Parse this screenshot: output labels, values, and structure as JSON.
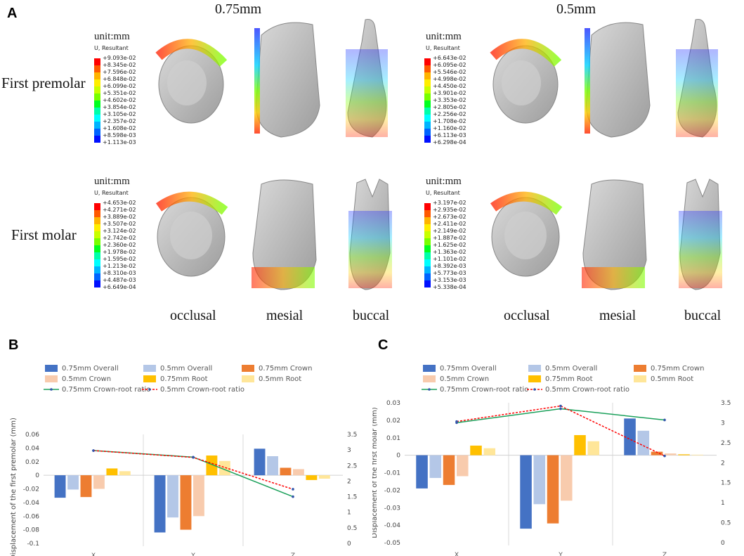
{
  "panel_a": {
    "letter": "A",
    "columns": [
      "0.75mm",
      "0.5mm"
    ],
    "rows": [
      "First premolar",
      "First molar"
    ],
    "views": [
      "occlusal",
      "mesial",
      "buccal"
    ],
    "unit_title": "unit:mm",
    "unit_sub": "U, Resultant",
    "scale_colors": [
      "#ff0000",
      "#ff5a00",
      "#ffb400",
      "#ffee00",
      "#c8ff00",
      "#78ff00",
      "#00ff20",
      "#00ffaa",
      "#00ffff",
      "#00b4ff",
      "#0064ff",
      "#0010ff"
    ],
    "scales": {
      "premolar_075": [
        "+9.093e-02",
        "+8.345e-02",
        "+7.596e-02",
        "+6.848e-02",
        "+6.099e-02",
        "+5.351e-02",
        "+4.602e-02",
        "+3.854e-02",
        "+3.105e-02",
        "+2.357e-02",
        "+1.608e-02",
        "+8.598e-03",
        "+1.113e-03"
      ],
      "premolar_05": [
        "+6.643e-02",
        "+6.095e-02",
        "+5.546e-02",
        "+4.998e-02",
        "+4.450e-02",
        "+3.901e-02",
        "+3.353e-02",
        "+2.805e-02",
        "+2.256e-02",
        "+1.708e-02",
        "+1.160e-02",
        "+6.113e-03",
        "+6.298e-04"
      ],
      "molar_075": [
        "+4.653e-02",
        "+4.271e-02",
        "+3.889e-02",
        "+3.507e-02",
        "+3.124e-02",
        "+2.742e-02",
        "+2.360e-02",
        "+1.978e-02",
        "+1.595e-02",
        "+1.213e-02",
        "+8.310e-03",
        "+4.487e-03",
        "+6.649e-04"
      ],
      "molar_05": [
        "+3.197e-02",
        "+2.935e-02",
        "+2.673e-02",
        "+2.411e-02",
        "+2.149e-02",
        "+1.887e-02",
        "+1.625e-02",
        "+1.363e-02",
        "+1.101e-02",
        "+8.392e-03",
        "+5.773e-03",
        "+3.153e-03",
        "+5.338e-04"
      ]
    }
  },
  "chart_data": [
    {
      "type": "bar",
      "panel": "B",
      "title": "",
      "categories": [
        "X",
        "Y",
        "Z"
      ],
      "ylabel": "Displacement of the first premolar (mm)",
      "ylim": [
        -0.1,
        0.06
      ],
      "yticks": [
        "0.06",
        "0.04",
        "0.02",
        "0",
        "-0.02",
        "-0.04",
        "-0.06",
        "-0.08",
        "-0.1"
      ],
      "y2lim": [
        0,
        3.5
      ],
      "y2ticks": [
        "3.5",
        "3",
        "2.5",
        "2",
        "1.5",
        "1",
        "0.5",
        "0"
      ],
      "series": [
        {
          "name": "0.75mm Overall",
          "color": "#4472c4",
          "values": [
            -0.033,
            -0.084,
            0.039
          ]
        },
        {
          "name": "0.5mm Overall",
          "color": "#b4c7e7",
          "values": [
            -0.021,
            -0.062,
            0.028
          ]
        },
        {
          "name": "0.75mm Crown",
          "color": "#ed7d31",
          "values": [
            -0.032,
            -0.08,
            0.011
          ]
        },
        {
          "name": "0.5mm Crown",
          "color": "#f8cbad",
          "values": [
            -0.02,
            -0.06,
            0.009
          ]
        },
        {
          "name": "0.75mm Root",
          "color": "#ffc000",
          "values": [
            0.01,
            0.029,
            -0.007
          ]
        },
        {
          "name": "0.5mm Root",
          "color": "#ffe699",
          "values": [
            0.006,
            0.021,
            -0.005
          ]
        }
      ],
      "ratio_series": [
        {
          "name": "0.75mm Crown-root ratio",
          "color": "#1aa05a",
          "values": [
            2.98,
            2.77,
            1.5
          ]
        },
        {
          "name": "0.5mm Crown-root ratio",
          "color": "#ff0000",
          "values": [
            2.98,
            2.76,
            1.74
          ]
        }
      ]
    },
    {
      "type": "bar",
      "panel": "C",
      "title": "",
      "categories": [
        "X",
        "Y",
        "Z"
      ],
      "ylabel": "Displacement of the  first molar (mm)",
      "ylim": [
        -0.05,
        0.03
      ],
      "yticks": [
        "0.03",
        "0.02",
        "0.01",
        "0",
        "-0.01",
        "-0.02",
        "-0.03",
        "-0.04",
        "-0.05"
      ],
      "y2lim": [
        0,
        3.5
      ],
      "y2ticks": [
        "3.5",
        "3",
        "2.5",
        "2",
        "1.5",
        "1",
        "0.5",
        "0"
      ],
      "series": [
        {
          "name": "0.75mm Overall",
          "color": "#4472c4",
          "values": [
            -0.019,
            -0.042,
            0.021
          ]
        },
        {
          "name": "0.5mm Overall",
          "color": "#b4c7e7",
          "values": [
            -0.013,
            -0.028,
            0.014
          ]
        },
        {
          "name": "0.75mm Crown",
          "color": "#ed7d31",
          "values": [
            -0.017,
            -0.039,
            0.002
          ]
        },
        {
          "name": "0.5mm Crown",
          "color": "#f8cbad",
          "values": [
            -0.012,
            -0.026,
            0.001
          ]
        },
        {
          "name": "0.75mm Root",
          "color": "#ffc000",
          "values": [
            0.0055,
            0.0115,
            0.0005
          ]
        },
        {
          "name": "0.5mm Root",
          "color": "#ffe699",
          "values": [
            0.004,
            0.008,
            0.0003
          ]
        }
      ],
      "ratio_series": [
        {
          "name": "0.75mm Crown-root ratio",
          "color": "#1aa05a",
          "values": [
            3.0,
            3.35,
            3.07
          ]
        },
        {
          "name": "0.5mm Crown-root ratio",
          "color": "#ff0000",
          "values": [
            3.03,
            3.42,
            2.17
          ]
        }
      ]
    }
  ]
}
